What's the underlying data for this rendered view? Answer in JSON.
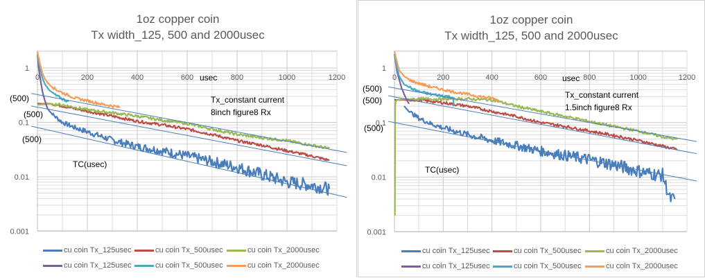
{
  "charts": [
    {
      "id": "chart1",
      "title_line1": "1oz copper coin",
      "title_line2": "Tx width_125, 500 and 2000usec",
      "annotation_line1": "Tx_constant current",
      "annotation_line2": "8inch figure8 Rx",
      "xaxis_label": "usec",
      "curve_label": "TC(usec)",
      "fit_labels": [
        "(500)",
        "(500)",
        "(500)"
      ],
      "x_ticks": [
        "0",
        "200",
        "400",
        "600",
        "800",
        "1000",
        "1200"
      ],
      "y_ticks": [
        "1",
        "0.1",
        "0.01",
        "0.001"
      ],
      "legend": [
        {
          "label": "cu coin Tx_125usec",
          "color": "#4a7ebb"
        },
        {
          "label": "cu coin Tx_500usec",
          "color": "#be4b48"
        },
        {
          "label": "cu coin Tx_2000usec",
          "color": "#98b954"
        },
        {
          "label": "cu coin Tx_125usec",
          "color": "#7d5fa0"
        },
        {
          "label": "cu coin Tx_500usec",
          "color": "#46aac5"
        },
        {
          "label": "cu coin Tx_2000usec",
          "color": "#f59d56"
        }
      ]
    },
    {
      "id": "chart2",
      "title_line1": "1oz copper coin",
      "title_line2": "Tx width_125, 500 and 2000usec",
      "annotation_line1": "Tx_constant current",
      "annotation_line2": "1.5inch figure8 Rx",
      "xaxis_label": "usec",
      "curve_label": "TC(usec)",
      "fit_labels": [
        "(500)",
        "(500)",
        "(500)"
      ],
      "x_ticks": [
        "0",
        "200",
        "400",
        "600",
        "800",
        "1000",
        "1200"
      ],
      "y_ticks": [
        "1",
        "0.1",
        "0.01",
        "0.001"
      ],
      "legend": [
        {
          "label": "cu coin Tx_125usec",
          "color": "#4a7ebb"
        },
        {
          "label": "cu coin Tx_500usec",
          "color": "#be4b48"
        },
        {
          "label": "cu coin Tx_2000usec",
          "color": "#98b954"
        },
        {
          "label": "cu coin Tx_125usec",
          "color": "#7d5fa0"
        },
        {
          "label": "cu coin Tx_500usec",
          "color": "#46aac5"
        },
        {
          "label": "cu coin Tx_2000usec",
          "color": "#f59d56"
        }
      ]
    }
  ],
  "chart_data": [
    {
      "type": "line",
      "title": "1oz copper coin / Tx width_125, 500 and 2000usec",
      "xlabel": "usec",
      "ylabel": "",
      "yscale": "log",
      "xlim": [
        0,
        1200
      ],
      "ylim": [
        0.001,
        2
      ],
      "grid": true,
      "legend_position": "bottom",
      "annotations": [
        "Tx_constant current",
        "8inch figure8 Rx",
        "TC(usec)",
        "(500)",
        "(500)",
        "(500)"
      ],
      "series": [
        {
          "name": "cu coin Tx_125usec",
          "color": "#4a7ebb",
          "x": [
            40,
            60,
            100,
            150,
            200,
            300,
            400,
            500,
            600,
            700,
            800,
            900,
            1000,
            1100,
            1170
          ],
          "y": [
            0.18,
            0.14,
            0.1,
            0.08,
            0.067,
            0.047,
            0.036,
            0.03,
            0.024,
            0.019,
            0.015,
            0.011,
            0.008,
            0.007,
            0.006
          ],
          "noisy": true
        },
        {
          "name": "cu coin Tx_500usec",
          "color": "#be4b48",
          "x": [
            0,
            50,
            100,
            200,
            300,
            400,
            500,
            600,
            700,
            800,
            900,
            1000,
            1100,
            1170
          ],
          "y": [
            0.22,
            0.22,
            0.2,
            0.16,
            0.13,
            0.105,
            0.09,
            0.075,
            0.06,
            0.046,
            0.038,
            0.03,
            0.024,
            0.02
          ]
        },
        {
          "name": "cu coin Tx_2000usec",
          "color": "#98b954",
          "x": [
            0,
            50,
            100,
            200,
            300,
            400,
            500,
            600,
            700,
            800,
            900,
            1000,
            1100,
            1170
          ],
          "y": [
            0.21,
            0.22,
            0.21,
            0.17,
            0.15,
            0.13,
            0.11,
            0.095,
            0.075,
            0.06,
            0.052,
            0.046,
            0.038,
            0.033
          ]
        },
        {
          "name": "cu coin Tx_125usec",
          "color": "#7d5fa0",
          "x": [
            0,
            5,
            10,
            15,
            20,
            25,
            30,
            35,
            40
          ],
          "y": [
            1.8,
            1.0,
            0.7,
            0.5,
            0.37,
            0.3,
            0.25,
            0.21,
            0.18
          ]
        },
        {
          "name": "cu coin Tx_500usec",
          "color": "#46aac5",
          "x": [
            0,
            10,
            20,
            30,
            50,
            75,
            100,
            125
          ],
          "y": [
            1.8,
            1.0,
            0.65,
            0.5,
            0.38,
            0.31,
            0.27,
            0.24
          ]
        },
        {
          "name": "cu coin Tx_2000usec",
          "color": "#f59d56",
          "x": [
            0,
            10,
            20,
            30,
            50,
            75,
            100,
            150,
            200,
            250,
            300,
            330
          ],
          "y": [
            2.0,
            1.2,
            0.8,
            0.62,
            0.48,
            0.4,
            0.35,
            0.28,
            0.25,
            0.22,
            0.2,
            0.19
          ]
        },
        {
          "name": "fit_2000",
          "color": "#4a7ebb",
          "trendline": true,
          "x": [
            -25,
            1240
          ],
          "y": [
            0.34,
            0.028
          ]
        },
        {
          "name": "fit_500",
          "color": "#4a7ebb",
          "trendline": true,
          "x": [
            -25,
            1240
          ],
          "y": [
            0.2,
            0.016
          ]
        },
        {
          "name": "fit_125",
          "color": "#4a7ebb",
          "trendline": true,
          "x": [
            -25,
            1240
          ],
          "y": [
            0.085,
            0.0042
          ]
        }
      ]
    },
    {
      "type": "line",
      "title": "1oz copper coin / Tx width_125, 500 and 2000usec",
      "xlabel": "usec",
      "ylabel": "",
      "yscale": "log",
      "xlim": [
        0,
        1200
      ],
      "ylim": [
        0.001,
        2
      ],
      "grid": true,
      "legend_position": "bottom",
      "annotations": [
        "Tx_constant current",
        "1.5inch figure8 Rx",
        "TC(usec)",
        "(500)",
        "(500)",
        "(500)"
      ],
      "series": [
        {
          "name": "cu coin Tx_125usec",
          "color": "#4a7ebb",
          "x": [
            40,
            60,
            100,
            150,
            200,
            300,
            400,
            500,
            600,
            700,
            800,
            900,
            1000,
            1080,
            1100,
            1130,
            1150
          ],
          "y": [
            0.2,
            0.16,
            0.12,
            0.095,
            0.08,
            0.06,
            0.047,
            0.038,
            0.03,
            0.025,
            0.021,
            0.017,
            0.013,
            0.011,
            0.011,
            0.004,
            0.004
          ],
          "noisy": true
        },
        {
          "name": "cu coin Tx_500usec",
          "color": "#be4b48",
          "x": [
            0,
            100,
            200,
            300,
            400,
            500,
            600,
            700,
            800,
            900,
            1000,
            1100,
            1160
          ],
          "y": [
            0.26,
            0.26,
            0.23,
            0.2,
            0.16,
            0.13,
            0.1,
            0.085,
            0.07,
            0.058,
            0.047,
            0.037,
            0.032
          ]
        },
        {
          "name": "cu coin Tx_2000usec",
          "color": "#98b954",
          "x": [
            2,
            3,
            5,
            10,
            50,
            100,
            200,
            300,
            400,
            500,
            600,
            700,
            800,
            900,
            1000,
            1100,
            1160
          ],
          "y": [
            0.002,
            0.2,
            0.24,
            0.26,
            0.27,
            0.27,
            0.27,
            0.27,
            0.26,
            0.2,
            0.16,
            0.13,
            0.105,
            0.085,
            0.07,
            0.055,
            0.049
          ]
        },
        {
          "name": "cu coin Tx_125usec",
          "color": "#7d5fa0",
          "x": [
            0,
            10,
            20,
            30,
            40,
            50,
            60
          ],
          "y": [
            1.8,
            0.9,
            0.6,
            0.42,
            0.33,
            0.26,
            0.22
          ]
        },
        {
          "name": "cu coin Tx_500usec",
          "color": "#46aac5",
          "x": [
            0,
            10,
            20,
            40,
            70,
            100,
            150,
            200,
            240,
            245
          ],
          "y": [
            1.8,
            1.0,
            0.7,
            0.5,
            0.42,
            0.37,
            0.33,
            0.31,
            0.29,
            0.2
          ]
        },
        {
          "name": "cu coin Tx_2000usec",
          "color": "#f59d56",
          "x": [
            0,
            10,
            20,
            40,
            70,
            100,
            150,
            200,
            250,
            300,
            350,
            400,
            430
          ],
          "y": [
            2.0,
            1.3,
            0.9,
            0.7,
            0.58,
            0.52,
            0.45,
            0.4,
            0.36,
            0.33,
            0.3,
            0.28,
            0.25
          ]
        },
        {
          "name": "fit_2000",
          "color": "#4a7ebb",
          "trendline": true,
          "x": [
            -25,
            1240
          ],
          "y": [
            0.45,
            0.045
          ]
        },
        {
          "name": "fit_500",
          "color": "#4a7ebb",
          "trendline": true,
          "x": [
            -25,
            1240
          ],
          "y": [
            0.31,
            0.027
          ]
        },
        {
          "name": "fit_125",
          "color": "#4a7ebb",
          "trendline": true,
          "x": [
            -25,
            1240
          ],
          "y": [
            0.105,
            0.0085
          ]
        }
      ]
    }
  ]
}
